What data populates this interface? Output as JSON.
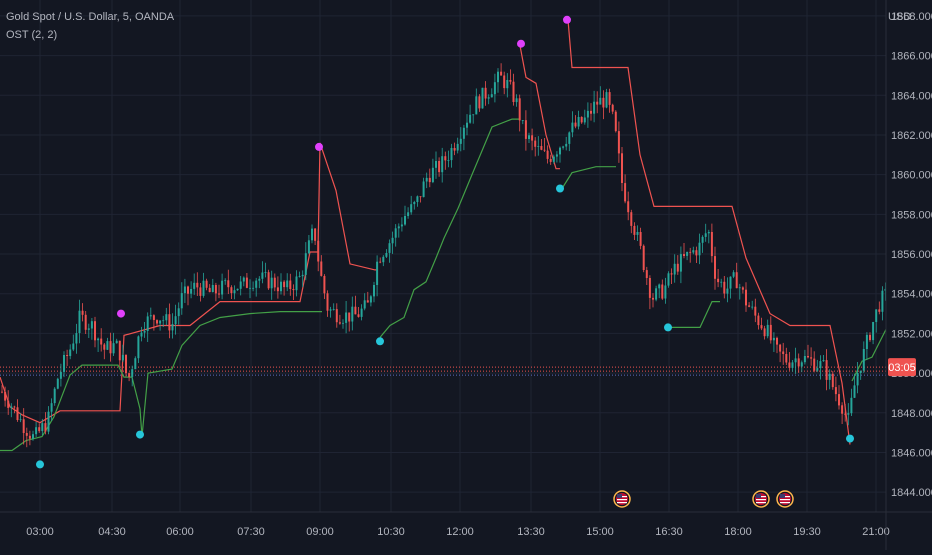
{
  "header": {
    "title": "Gold Spot / U.S. Dollar, 5, OANDA",
    "indicator": "OST (2, 2)",
    "currency": "USD"
  },
  "colors": {
    "background": "#131722",
    "grid": "#1f2433",
    "text": "#b2b5be",
    "up": "#26a69a",
    "down": "#ef5350",
    "ost_upper": "#ef5350",
    "ost_lower": "#43a047",
    "dot_sell": "#e040fb",
    "dot_buy": "#26c6da",
    "price_line": "#ef5350",
    "ref_line": "#5c6bc0",
    "price_tag_bg": "#ef5350",
    "event_border": "#ffb74d"
  },
  "chart_data": {
    "type": "candlestick",
    "symbol": "XAUUSD",
    "timeframe": "5",
    "xlabels": [
      "03:00",
      "04:30",
      "06:00",
      "07:30",
      "09:00",
      "10:30",
      "12:00",
      "13:30",
      "15:00",
      "16:30",
      "18:00",
      "19:30",
      "21:00"
    ],
    "ylabels": [
      "1844.000",
      "1846.000",
      "1848.000",
      "1850.000",
      "1852.000",
      "1854.000",
      "1856.000",
      "1858.000",
      "1860.000",
      "1862.000",
      "1864.000",
      "1866.000",
      "1868.000"
    ],
    "ylim": [
      1843.0,
      1868.8
    ],
    "current_price_label": "03:05",
    "current_price": 1850.3,
    "reference_price": 1850.1,
    "price_path": [
      [
        0,
        1849.2
      ],
      [
        10,
        1848.5
      ],
      [
        22,
        1847.5
      ],
      [
        34,
        1846.7
      ],
      [
        48,
        1847.6
      ],
      [
        58,
        1849.8
      ],
      [
        70,
        1851.2
      ],
      [
        80,
        1852.8
      ],
      [
        92,
        1852.4
      ],
      [
        104,
        1851.2
      ],
      [
        116,
        1851.4
      ],
      [
        122,
        1850.8
      ],
      [
        128,
        1849.6
      ],
      [
        134,
        1850.8
      ],
      [
        142,
        1852.5
      ],
      [
        158,
        1852.9
      ],
      [
        172,
        1852.4
      ],
      [
        182,
        1853.8
      ],
      [
        196,
        1854.4
      ],
      [
        212,
        1854.0
      ],
      [
        226,
        1854.4
      ],
      [
        242,
        1854.4
      ],
      [
        256,
        1854.8
      ],
      [
        272,
        1854.6
      ],
      [
        286,
        1854.2
      ],
      [
        300,
        1854.8
      ],
      [
        308,
        1856.2
      ],
      [
        314,
        1857.3
      ],
      [
        320,
        1855.1
      ],
      [
        328,
        1853.2
      ],
      [
        342,
        1852.9
      ],
      [
        356,
        1852.9
      ],
      [
        368,
        1853.4
      ],
      [
        378,
        1855.8
      ],
      [
        392,
        1856.8
      ],
      [
        404,
        1857.9
      ],
      [
        416,
        1858.5
      ],
      [
        428,
        1860.0
      ],
      [
        440,
        1860.4
      ],
      [
        452,
        1861.3
      ],
      [
        464,
        1862.6
      ],
      [
        476,
        1863.6
      ],
      [
        488,
        1864.2
      ],
      [
        500,
        1864.9
      ],
      [
        508,
        1864.5
      ],
      [
        516,
        1863.7
      ],
      [
        524,
        1862.1
      ],
      [
        534,
        1861.4
      ],
      [
        548,
        1860.8
      ],
      [
        560,
        1861.5
      ],
      [
        572,
        1862.3
      ],
      [
        586,
        1862.8
      ],
      [
        596,
        1863.6
      ],
      [
        606,
        1863.8
      ],
      [
        614,
        1862.6
      ],
      [
        622,
        1859.6
      ],
      [
        630,
        1858.1
      ],
      [
        640,
        1856.3
      ],
      [
        652,
        1853.8
      ],
      [
        664,
        1854.2
      ],
      [
        676,
        1855.4
      ],
      [
        690,
        1856.0
      ],
      [
        700,
        1856.4
      ],
      [
        708,
        1857.3
      ],
      [
        716,
        1854.8
      ],
      [
        726,
        1854.2
      ],
      [
        736,
        1854.8
      ],
      [
        746,
        1853.6
      ],
      [
        756,
        1852.8
      ],
      [
        766,
        1852.2
      ],
      [
        776,
        1851.1
      ],
      [
        788,
        1850.6
      ],
      [
        800,
        1850.8
      ],
      [
        812,
        1850.6
      ],
      [
        824,
        1850.3
      ],
      [
        834,
        1849.2
      ],
      [
        842,
        1848.4
      ],
      [
        848,
        1847.5
      ],
      [
        856,
        1849.8
      ],
      [
        864,
        1851.0
      ],
      [
        872,
        1852.4
      ],
      [
        880,
        1853.6
      ],
      [
        886,
        1853.9
      ]
    ],
    "series": [
      {
        "name": "OST upper",
        "points": [
          [
            0,
            1849.8
          ],
          [
            10,
            1848.3
          ],
          [
            22,
            1847.9
          ],
          [
            40,
            1847.5
          ],
          [
            60,
            1848.1
          ],
          [
            120,
            1848.1
          ],
          [
            124,
            1851.9
          ],
          [
            160,
            1852.4
          ],
          [
            190,
            1852.4
          ],
          [
            220,
            1853.6
          ],
          [
            250,
            1853.6
          ],
          [
            280,
            1853.6
          ],
          [
            300,
            1853.6
          ],
          [
            310,
            1856.1
          ],
          [
            318,
            1856.1
          ],
          [
            320,
            1861.6
          ],
          [
            336,
            1859.2
          ],
          [
            350,
            1855.5
          ],
          [
            375,
            1855.2
          ],
          [
            378,
            1855.2
          ]
        ],
        "points2": [
          [
            520,
            1866.5
          ],
          [
            526,
            1864.9
          ],
          [
            536,
            1864.6
          ],
          [
            546,
            1862.0
          ],
          [
            556,
            1860.3
          ],
          [
            560,
            1860.3
          ]
        ],
        "points3": [
          [
            568,
            1867.8
          ],
          [
            572,
            1865.4
          ],
          [
            628,
            1865.4
          ],
          [
            640,
            1861.0
          ],
          [
            654,
            1858.4
          ],
          [
            732,
            1858.4
          ],
          [
            746,
            1855.8
          ],
          [
            770,
            1853.0
          ],
          [
            790,
            1852.4
          ],
          [
            830,
            1852.4
          ],
          [
            842,
            1849.5
          ],
          [
            850,
            1846.4
          ]
        ]
      },
      {
        "name": "OST lower",
        "points": [
          [
            0,
            1846.1
          ],
          [
            12,
            1846.1
          ],
          [
            26,
            1846.6
          ],
          [
            42,
            1846.8
          ],
          [
            54,
            1847.8
          ],
          [
            70,
            1849.9
          ],
          [
            82,
            1850.4
          ],
          [
            118,
            1850.4
          ],
          [
            124,
            1849.8
          ],
          [
            132,
            1849.8
          ],
          [
            140,
            1848.2
          ],
          [
            142,
            1846.8
          ],
          [
            148,
            1850.0
          ],
          [
            172,
            1850.2
          ],
          [
            182,
            1851.4
          ],
          [
            200,
            1852.4
          ],
          [
            220,
            1852.8
          ],
          [
            250,
            1853.0
          ],
          [
            280,
            1853.1
          ],
          [
            322,
            1853.1
          ]
        ],
        "points2": [
          [
            380,
            1851.8
          ],
          [
            390,
            1852.4
          ],
          [
            404,
            1852.8
          ],
          [
            414,
            1854.2
          ],
          [
            426,
            1854.6
          ],
          [
            436,
            1855.8
          ],
          [
            444,
            1856.8
          ],
          [
            458,
            1858.3
          ],
          [
            472,
            1860.0
          ],
          [
            492,
            1862.4
          ],
          [
            512,
            1862.8
          ],
          [
            520,
            1862.8
          ]
        ],
        "points3": [
          [
            562,
            1859.3
          ],
          [
            572,
            1860.1
          ],
          [
            596,
            1860.4
          ],
          [
            616,
            1860.4
          ]
        ],
        "points4": [
          [
            670,
            1852.3
          ],
          [
            700,
            1852.3
          ],
          [
            712,
            1853.6
          ],
          [
            720,
            1853.6
          ]
        ],
        "points5": [
          [
            852,
            1849.6
          ],
          [
            862,
            1850.6
          ],
          [
            872,
            1850.8
          ],
          [
            886,
            1852.2
          ]
        ]
      }
    ],
    "markers": {
      "sell": [
        [
          121,
          1853.0
        ],
        [
          319,
          1861.4
        ],
        [
          521,
          1866.6
        ],
        [
          567,
          1867.8
        ]
      ],
      "buy": [
        [
          40,
          1845.4
        ],
        [
          140,
          1846.9
        ],
        [
          380,
          1851.6
        ],
        [
          560,
          1859.3
        ],
        [
          668,
          1852.3
        ],
        [
          850,
          1846.7
        ]
      ]
    },
    "events": [
      {
        "country": "US",
        "x": 622
      },
      {
        "country": "US",
        "x": 761
      },
      {
        "country": "US",
        "x": 785
      }
    ]
  }
}
